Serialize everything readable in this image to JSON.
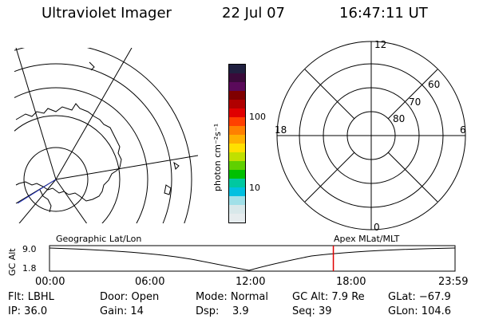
{
  "header": {
    "title": "Ultraviolet Imager",
    "date": "22 Jul 07",
    "time": "16:47:11 UT"
  },
  "geo_plot": {
    "title": "Geographic Lat/Lon"
  },
  "colorbar": {
    "unit_label": "photon cm⁻²s⁻¹",
    "ticks": [
      "100",
      "10"
    ],
    "colors": [
      "#202040",
      "#3a0a3a",
      "#5a0a5a",
      "#800000",
      "#b00000",
      "#e00000",
      "#ff4000",
      "#ff8000",
      "#ffb000",
      "#ffe000",
      "#c0e000",
      "#60d000",
      "#00c000",
      "#00c8a0",
      "#00c0e0",
      "#a0e0e8",
      "#d8e8ea",
      "#e6ecee"
    ]
  },
  "polar_plot": {
    "title": "Apex MLat/MLT",
    "mlt_labels": {
      "top": "12",
      "left": "18",
      "right": "6",
      "bottom": "0"
    },
    "lat_labels": [
      "60",
      "70",
      "80"
    ]
  },
  "timeline": {
    "y_label": "GC Alt",
    "y_ticks": [
      "9.0",
      "1.8"
    ],
    "x_ticks": [
      "00:00",
      "06:00",
      "12:00",
      "18:00",
      "23:59"
    ],
    "marker_time": "16:47:11",
    "marker_color": "#e00000"
  },
  "footer": {
    "col1": [
      "Flt: LBHL",
      "IP: 36.0"
    ],
    "col2": [
      "Door: Open",
      "Gain: 14"
    ],
    "col3": [
      "Mode: Normal",
      "Dsp:    3.9"
    ],
    "col4": [
      "GC Alt: 7.9 Re",
      "Seq: 39"
    ],
    "col5": [
      "GLat: −67.9",
      "GLon: 104.6"
    ]
  }
}
